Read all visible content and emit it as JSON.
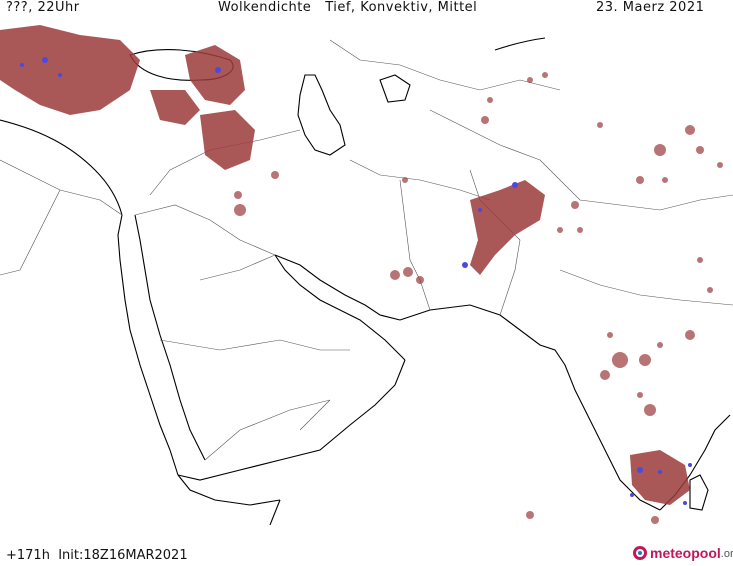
{
  "header": {
    "left": "???, 22Uhr",
    "center": "Wolkendichte   Tief, Konvektiv, Mittel",
    "right": "23. Maerz 2021"
  },
  "footer": {
    "run_info": "+171h  Init:18Z16MAR2021"
  },
  "logo": {
    "name": "meteopool",
    "tld": ".org"
  },
  "colors": {
    "cloud_cover": "#9b3a3a",
    "cloud_light": "#c98a8a",
    "convective": "#4a4ae0",
    "coastline": "#000000",
    "border": "#555555",
    "background": "#ffffff"
  }
}
